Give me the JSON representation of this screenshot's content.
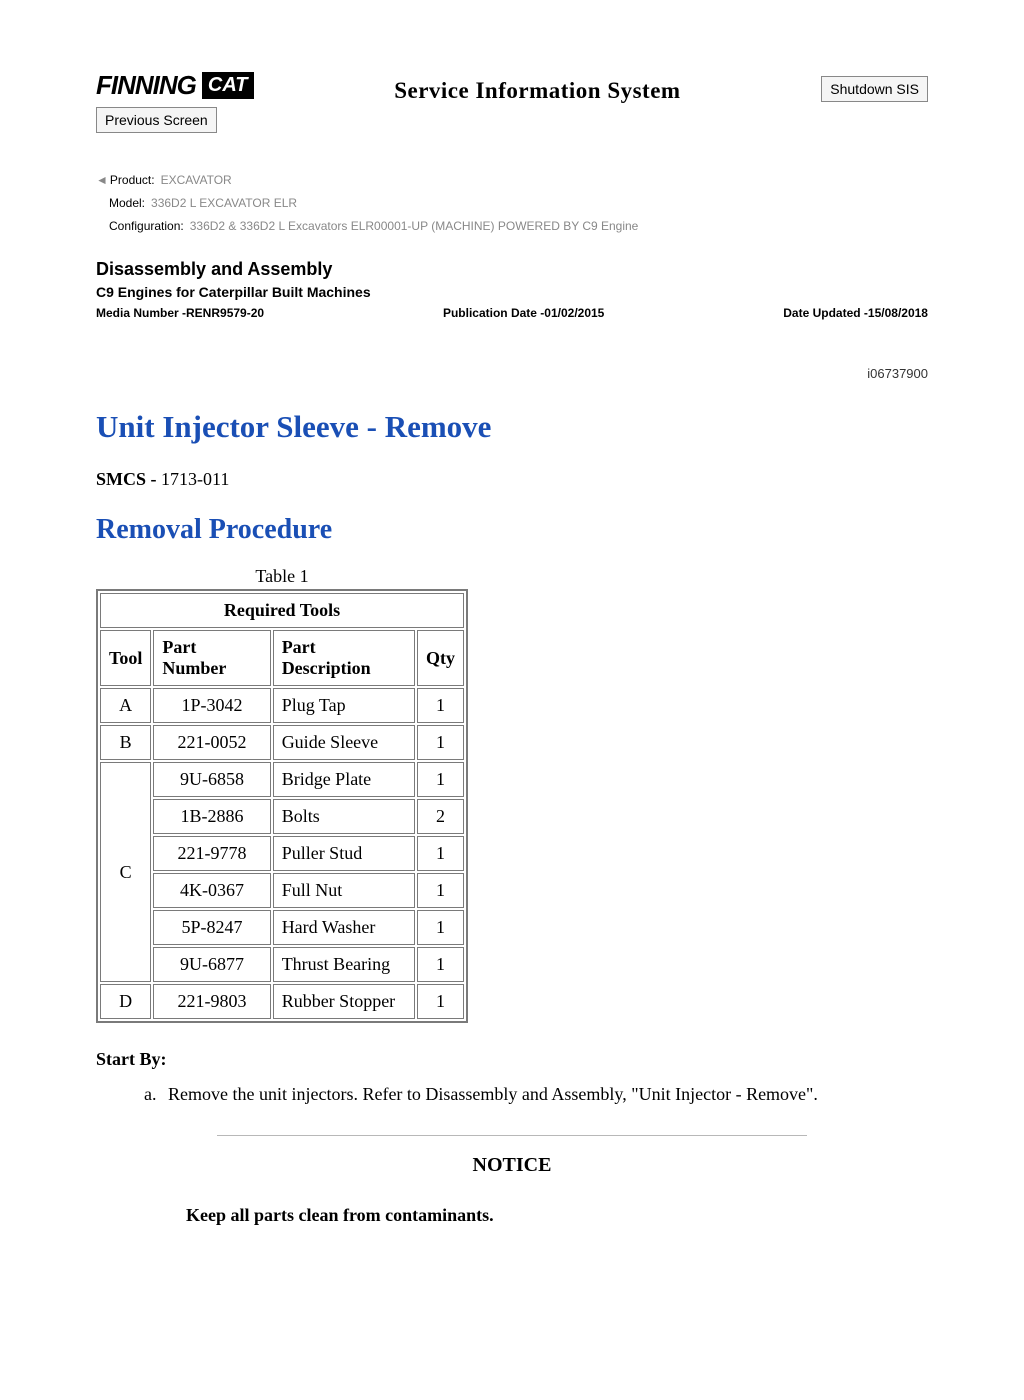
{
  "header": {
    "logo_finning": "FINNING",
    "logo_cat": "CAT",
    "sis_title": "Service Information System",
    "prev_screen_label": "Previous Screen",
    "shutdown_label": "Shutdown SIS"
  },
  "meta": {
    "product_label": "Product:",
    "product_value": "EXCAVATOR",
    "model_label": "Model:",
    "model_value": "336D2 L EXCAVATOR ELR",
    "config_label": "Configuration:",
    "config_value": "336D2 & 336D2 L Excavators ELR00001-UP (MACHINE) POWERED BY C9 Engine"
  },
  "doc": {
    "section": "Disassembly and Assembly",
    "subject": "C9 Engines for Caterpillar Built Machines",
    "media_number": "Media Number -RENR9579-20",
    "pub_date": "Publication Date -01/02/2015",
    "date_updated": "Date Updated -15/08/2018",
    "instruction_id": "i06737900",
    "title_main": "Unit Injector Sleeve - Remove",
    "smcs_label": "SMCS -",
    "smcs_code": "1713-011",
    "title_sub": "Removal Procedure"
  },
  "table": {
    "caption": "Table 1",
    "header": "Required Tools",
    "columns": [
      "Tool",
      "Part Number",
      "Part Description",
      "Qty"
    ],
    "rows": [
      {
        "tool": "A",
        "pn": "1P-3042",
        "desc": "Plug Tap",
        "qty": "1",
        "rowspan": 1
      },
      {
        "tool": "B",
        "pn": "221-0052",
        "desc": "Guide Sleeve",
        "qty": "1",
        "rowspan": 1
      },
      {
        "tool": "C",
        "pn": "9U-6858",
        "desc": "Bridge Plate",
        "qty": "1",
        "rowspan": 6
      },
      {
        "tool": "",
        "pn": "1B-2886",
        "desc": "Bolts",
        "qty": "2",
        "rowspan": 0
      },
      {
        "tool": "",
        "pn": "221-9778",
        "desc": "Puller Stud",
        "qty": "1",
        "rowspan": 0
      },
      {
        "tool": "",
        "pn": "4K-0367",
        "desc": "Full Nut",
        "qty": "1",
        "rowspan": 0
      },
      {
        "tool": "",
        "pn": "5P-8247",
        "desc": "Hard Washer",
        "qty": "1",
        "rowspan": 0
      },
      {
        "tool": "",
        "pn": "9U-6877",
        "desc": "Thrust Bearing",
        "qty": "1",
        "rowspan": 0
      },
      {
        "tool": "D",
        "pn": "221-9803",
        "desc": "Rubber Stopper",
        "qty": "1",
        "rowspan": 1
      }
    ]
  },
  "body": {
    "start_by": "Start By:",
    "step_a_marker": "a.",
    "step_a_text": "Remove the unit injectors. Refer to Disassembly and Assembly, \"Unit Injector - Remove\".",
    "notice": "NOTICE",
    "notice_body": "Keep all parts clean from contaminants."
  },
  "colors": {
    "link_blue": "#1a4fb5",
    "meta_grey": "#888888",
    "border_grey": "#7a7a7a",
    "hr_grey": "#b8b8b8"
  }
}
